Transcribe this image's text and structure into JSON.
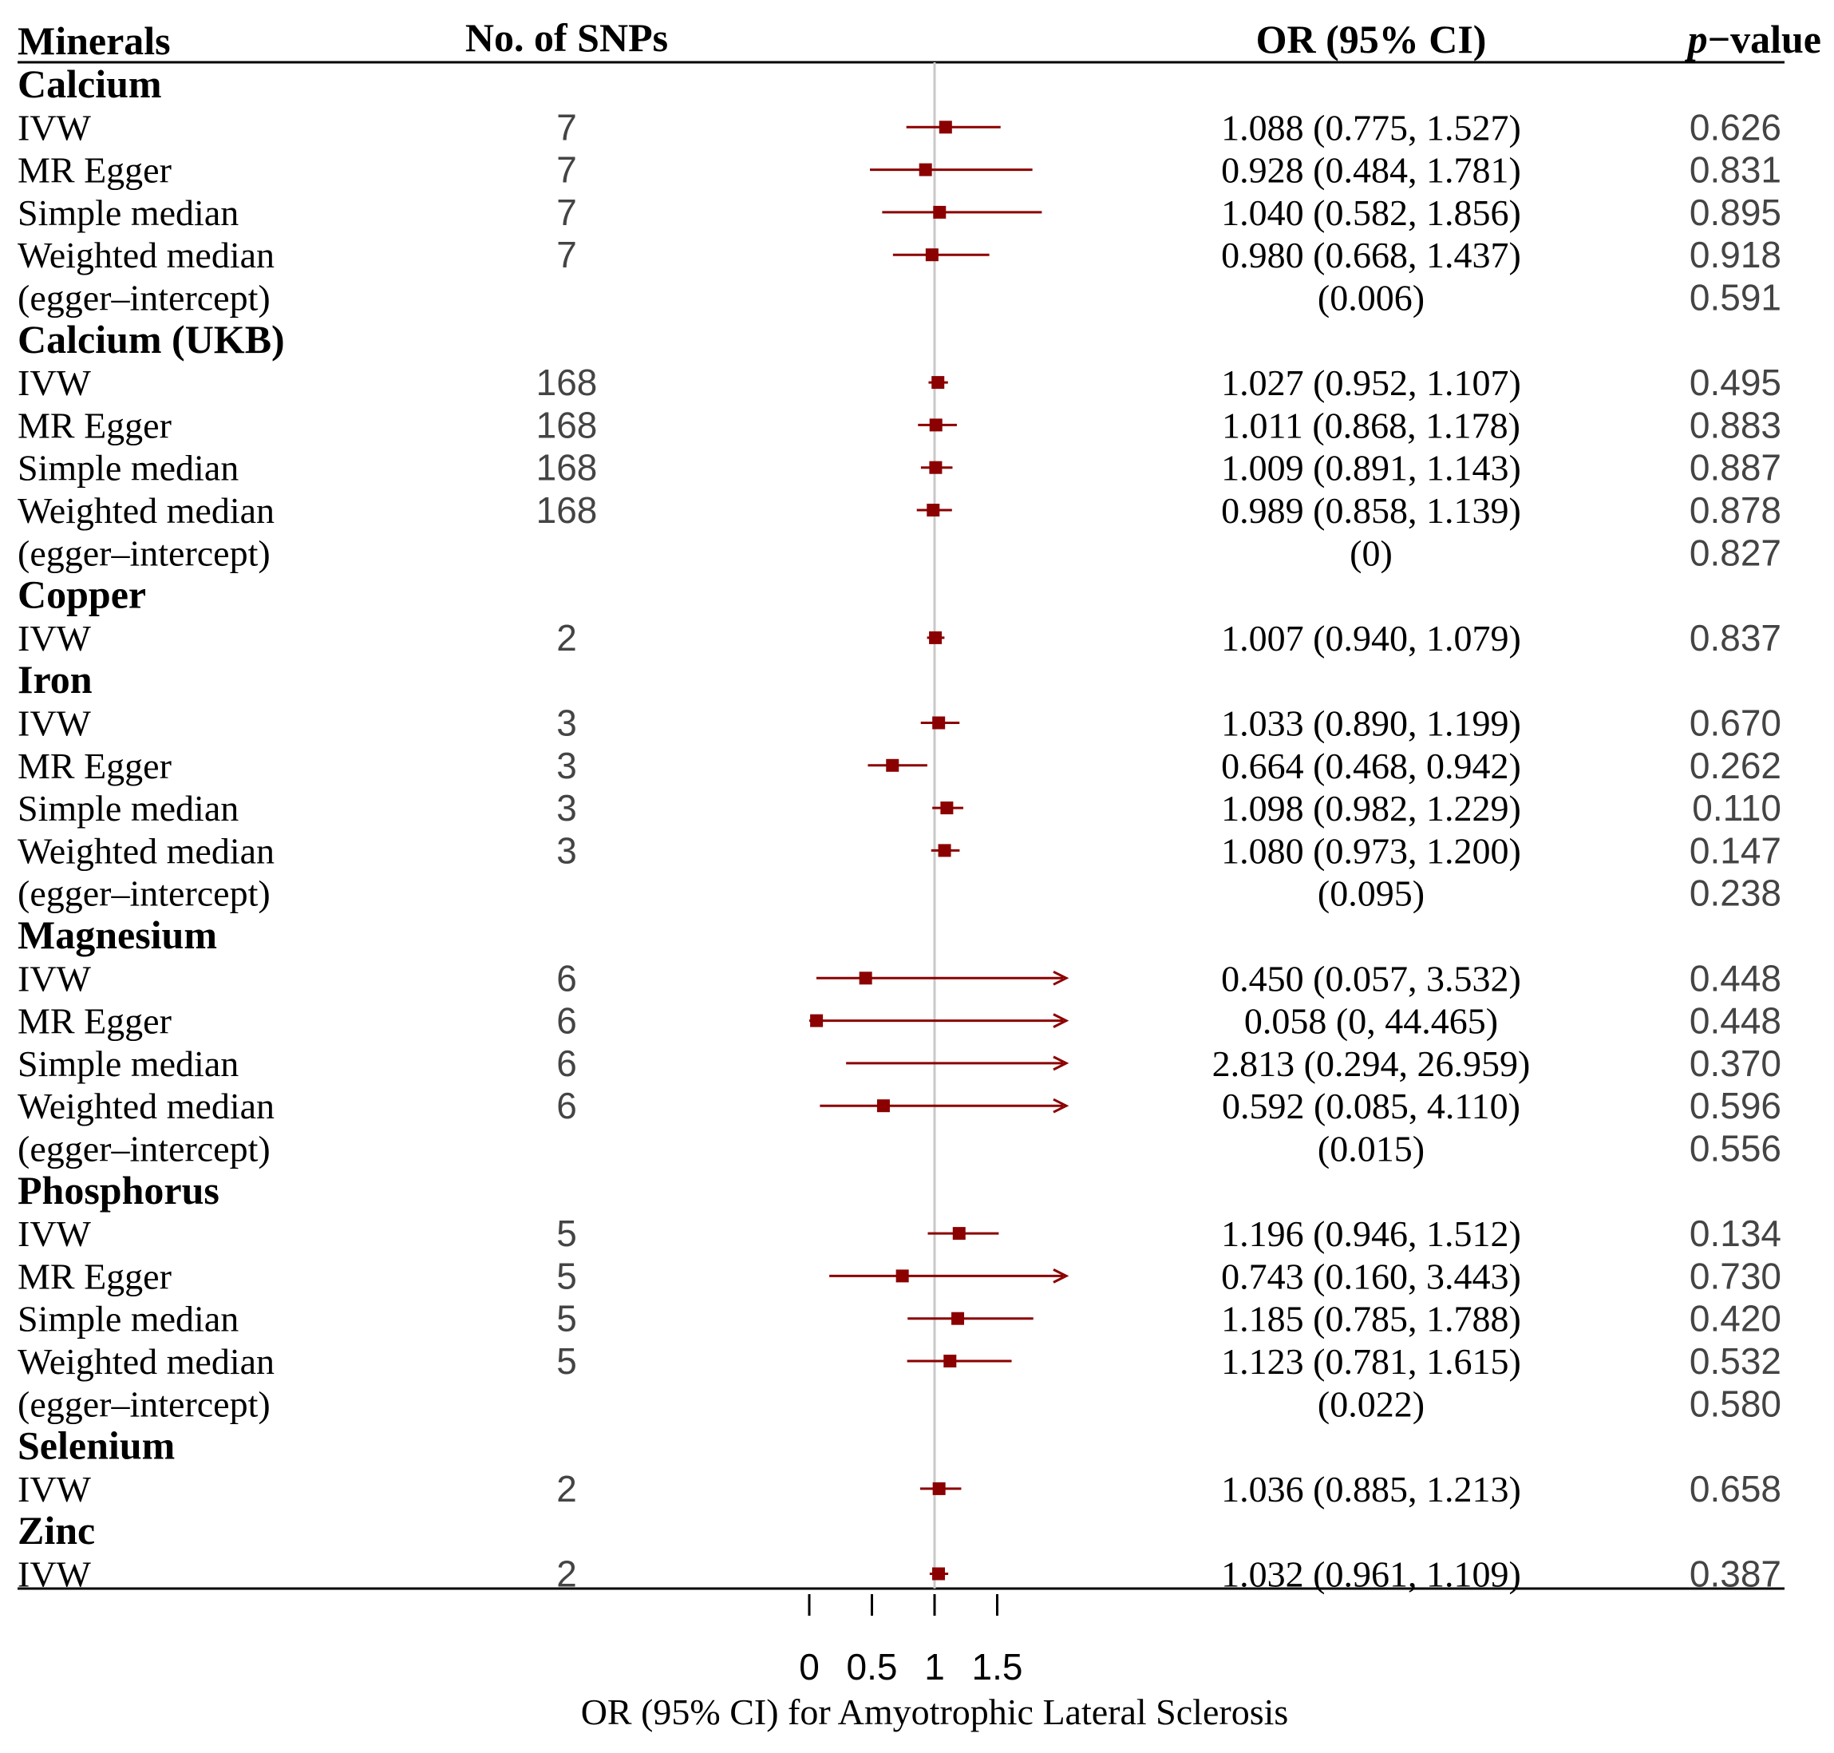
{
  "chart_data": {
    "type": "forest",
    "title": "",
    "xlabel": "OR (95% CI) for Amyotrophic Lateral Sclerosis",
    "xlim": [
      0,
      2
    ],
    "reference_line": 1,
    "x_ticks": [
      0,
      0.5,
      1,
      1.5
    ],
    "x_tick_labels": [
      "0",
      "0.5",
      "1",
      "1.5"
    ],
    "columns": {
      "minerals": "Minerals",
      "snps": "No. of SNPs",
      "or": "OR (95% CI)",
      "p_italic": "p",
      "p_rest": "−value"
    },
    "marker_color": "#8b0000",
    "rows": [
      {
        "kind": "group",
        "label": "Calcium"
      },
      {
        "kind": "method",
        "label": "IVW",
        "snps": "7",
        "or": 1.088,
        "lo": 0.775,
        "hi": 1.527,
        "or_text": "1.088 (0.775, 1.527)",
        "p": "0.626"
      },
      {
        "kind": "method",
        "label": "MR Egger",
        "snps": "7",
        "or": 0.928,
        "lo": 0.484,
        "hi": 1.781,
        "or_text": "0.928 (0.484, 1.781)",
        "p": "0.831"
      },
      {
        "kind": "method",
        "label": "Simple median",
        "snps": "7",
        "or": 1.04,
        "lo": 0.582,
        "hi": 1.856,
        "or_text": "1.040 (0.582, 1.856)",
        "p": "0.895"
      },
      {
        "kind": "method",
        "label": "Weighted median",
        "snps": "7",
        "or": 0.98,
        "lo": 0.668,
        "hi": 1.437,
        "or_text": "0.980 (0.668, 1.437)",
        "p": "0.918"
      },
      {
        "kind": "intercept",
        "label": "(egger–intercept)",
        "or_text": "(0.006)",
        "p": "0.591"
      },
      {
        "kind": "group",
        "label": "Calcium (UKB)"
      },
      {
        "kind": "method",
        "label": "IVW",
        "snps": "168",
        "or": 1.027,
        "lo": 0.952,
        "hi": 1.107,
        "or_text": "1.027 (0.952, 1.107)",
        "p": "0.495"
      },
      {
        "kind": "method",
        "label": "MR Egger",
        "snps": "168",
        "or": 1.011,
        "lo": 0.868,
        "hi": 1.178,
        "or_text": "1.011 (0.868, 1.178)",
        "p": "0.883"
      },
      {
        "kind": "method",
        "label": "Simple median",
        "snps": "168",
        "or": 1.009,
        "lo": 0.891,
        "hi": 1.143,
        "or_text": "1.009 (0.891, 1.143)",
        "p": "0.887"
      },
      {
        "kind": "method",
        "label": "Weighted median",
        "snps": "168",
        "or": 0.989,
        "lo": 0.858,
        "hi": 1.139,
        "or_text": "0.989 (0.858, 1.139)",
        "p": "0.878"
      },
      {
        "kind": "intercept",
        "label": "(egger–intercept)",
        "or_text": "(0)",
        "p": "0.827"
      },
      {
        "kind": "group",
        "label": "Copper"
      },
      {
        "kind": "method",
        "label": "IVW",
        "snps": "2",
        "or": 1.007,
        "lo": 0.94,
        "hi": 1.079,
        "or_text": "1.007 (0.940, 1.079)",
        "p": "0.837"
      },
      {
        "kind": "group",
        "label": "Iron"
      },
      {
        "kind": "method",
        "label": "IVW",
        "snps": "3",
        "or": 1.033,
        "lo": 0.89,
        "hi": 1.199,
        "or_text": "1.033 (0.890, 1.199)",
        "p": "0.670"
      },
      {
        "kind": "method",
        "label": "MR Egger",
        "snps": "3",
        "or": 0.664,
        "lo": 0.468,
        "hi": 0.942,
        "or_text": "0.664 (0.468, 0.942)",
        "p": "0.262"
      },
      {
        "kind": "method",
        "label": "Simple median",
        "snps": "3",
        "or": 1.098,
        "lo": 0.982,
        "hi": 1.229,
        "or_text": "1.098 (0.982, 1.229)",
        "p": "0.110"
      },
      {
        "kind": "method",
        "label": "Weighted median",
        "snps": "3",
        "or": 1.08,
        "lo": 0.973,
        "hi": 1.2,
        "or_text": "1.080 (0.973, 1.200)",
        "p": "0.147"
      },
      {
        "kind": "intercept",
        "label": "(egger–intercept)",
        "or_text": "(0.095)",
        "p": "0.238"
      },
      {
        "kind": "group",
        "label": "Magnesium"
      },
      {
        "kind": "method",
        "label": "IVW",
        "snps": "6",
        "or": 0.45,
        "lo": 0.057,
        "hi": 3.532,
        "or_text": "0.450 (0.057, 3.532)",
        "p": "0.448"
      },
      {
        "kind": "method",
        "label": "MR Egger",
        "snps": "6",
        "or": 0.058,
        "lo": 0,
        "hi": 44.465,
        "or_text": "0.058 (0, 44.465)",
        "p": "0.448"
      },
      {
        "kind": "method",
        "label": "Simple median",
        "snps": "6",
        "or": 2.813,
        "lo": 0.294,
        "hi": 26.959,
        "or_text": "2.813 (0.294, 26.959)",
        "p": "0.370"
      },
      {
        "kind": "method",
        "label": "Weighted median",
        "snps": "6",
        "or": 0.592,
        "lo": 0.085,
        "hi": 4.11,
        "or_text": "0.592 (0.085, 4.110)",
        "p": "0.596"
      },
      {
        "kind": "intercept",
        "label": "(egger–intercept)",
        "or_text": "(0.015)",
        "p": "0.556"
      },
      {
        "kind": "group",
        "label": "Phosphorus"
      },
      {
        "kind": "method",
        "label": "IVW",
        "snps": "5",
        "or": 1.196,
        "lo": 0.946,
        "hi": 1.512,
        "or_text": "1.196 (0.946, 1.512)",
        "p": "0.134"
      },
      {
        "kind": "method",
        "label": "MR Egger",
        "snps": "5",
        "or": 0.743,
        "lo": 0.16,
        "hi": 3.443,
        "or_text": "0.743 (0.160, 3.443)",
        "p": "0.730"
      },
      {
        "kind": "method",
        "label": "Simple median",
        "snps": "5",
        "or": 1.185,
        "lo": 0.785,
        "hi": 1.788,
        "or_text": "1.185 (0.785, 1.788)",
        "p": "0.420"
      },
      {
        "kind": "method",
        "label": "Weighted median",
        "snps": "5",
        "or": 1.123,
        "lo": 0.781,
        "hi": 1.615,
        "or_text": "1.123 (0.781, 1.615)",
        "p": "0.532"
      },
      {
        "kind": "intercept",
        "label": "(egger–intercept)",
        "or_text": "(0.022)",
        "p": "0.580"
      },
      {
        "kind": "group",
        "label": "Selenium"
      },
      {
        "kind": "method",
        "label": "IVW",
        "snps": "2",
        "or": 1.036,
        "lo": 0.885,
        "hi": 1.213,
        "or_text": "1.036 (0.885, 1.213)",
        "p": "0.658"
      },
      {
        "kind": "group",
        "label": "Zinc"
      },
      {
        "kind": "method",
        "label": "IVW",
        "snps": "2",
        "or": 1.032,
        "lo": 0.961,
        "hi": 1.109,
        "or_text": "1.032 (0.961, 1.109)",
        "p": "0.387"
      }
    ]
  }
}
